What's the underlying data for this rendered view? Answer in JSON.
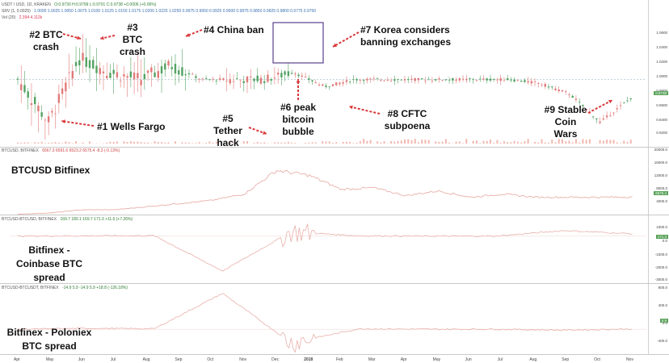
{
  "header": {
    "symbol": "USDT / USD, 1D, KRAKEN",
    "ohlc": "O:0.9730  H:0.9799  L:0.9701  C:0.9738  +0.0006 (+0.06%)",
    "indicator_label": "SRV (1, 0.0025)",
    "indicator_values": "1.0000  1.0025  1.0050  1.0075  1.0100  1.0125  1.0150  1.0175  1.0200  1.0225  1.0250  0.9975  0.9950  0.9925  0.9900  0.9875  0.9850  0.9825  0.9800  0.9775  0.9750",
    "vol_label": "Vol (20)",
    "vol_values": "2.394  4.112k"
  },
  "panes": {
    "btcusd_header": "BTCUSD, BITFINEX",
    "btcusd_values": "6567.3  6591.6  6523.2  6575.4  -8.3 (-0.13%)",
    "btcusd_name": "BTCUSD Bitfinex",
    "cb_header": "BTCUSD-BTCUSD, BITFINEX",
    "cb_values": "169.7  180.1  169.7  171.3  +11.6 (+7.26%)",
    "cb_name": "Bitfinex - Coinbase BTC spread",
    "pol_header": "BTCUSD-BTCUSDT, BITFINEX",
    "pol_values": "-14.9  5.9  -14.9  5.9  +18.8 (-126.18%)",
    "pol_name": "Bitfinex - Poloniex BTC spread"
  },
  "annotations": [
    {
      "id": "wells-fargo",
      "text": "#1 Wells Fargo"
    },
    {
      "id": "btc-crash-2",
      "text": "#2 BTC crash"
    },
    {
      "id": "btc-crash-3",
      "text": "#3 BTC crash"
    },
    {
      "id": "china-ban",
      "text": "#4 China ban"
    },
    {
      "id": "tether-hack",
      "text": "#5 Tether hack"
    },
    {
      "id": "peak-bubble",
      "text": "#6 peak bitcoin bubble"
    },
    {
      "id": "korea",
      "text": "#7 Korea considers banning exchanges"
    },
    {
      "id": "cftc",
      "text": "#8 CFTC subpoena"
    },
    {
      "id": "stable-coin",
      "text": "#9 Stable Coin Wars"
    }
  ],
  "axes": {
    "main_ticks": [
      "1.0600",
      "1.0400",
      "1.0200",
      "1.0000",
      "0.9800",
      "0.9600",
      "0.9400",
      "0.9200"
    ],
    "main_badge": "0.9738",
    "btc_ticks": [
      "20000.0",
      "16000.0",
      "12000.0",
      "8000.0",
      "4000.0"
    ],
    "btc_badge": "6575.4",
    "cb_ticks": [
      "1000.0",
      "0.0",
      "-1000.0",
      "-2000.0",
      "-3000.0"
    ],
    "cb_badge": "171.3",
    "pol_ticks": [
      "800.0",
      "400.0",
      "0.0",
      "-400.0"
    ],
    "pol_badge": "5.9",
    "x_labels": [
      "Apr",
      "May",
      "Jun",
      "Jul",
      "Aug",
      "Sep",
      "Oct",
      "Nov",
      "Dec",
      "2018",
      "Feb",
      "Mar",
      "Apr",
      "May",
      "Jun",
      "Jul",
      "Aug",
      "Sep",
      "Oct",
      "Nov"
    ]
  },
  "colors": {
    "up": "#53a262",
    "down": "#e17a7a",
    "line": "#e8b0aa",
    "arrow": "#d9383a",
    "box": "#5b3f8c",
    "volume": "#f2b8b0"
  },
  "chart_data": [
    {
      "type": "line",
      "title": "USDT / USD, 1D, KRAKEN",
      "x": [
        "Apr 2017",
        "May 2017",
        "Jun 2017",
        "Jul 2017",
        "Aug 2017",
        "Sep 2017",
        "Oct 2017",
        "Nov 2017",
        "Dec 2017",
        "Jan 2018",
        "Feb 2018",
        "Mar 2018",
        "Apr 2018",
        "May 2018",
        "Jun 2018",
        "Jul 2018",
        "Aug 2018",
        "Sep 2018",
        "Oct 2018",
        "Oct 15 2018",
        "Oct 25 2018"
      ],
      "series": [
        {
          "values": [
            1.0,
            0.94,
            1.03,
            1.01,
            1.0,
            1.02,
            1.0,
            1.0,
            1.0,
            1.01,
            0.99,
            1.0,
            1.0,
            1.0,
            1.0,
            1.0,
            1.0,
            0.995,
            0.98,
            0.94,
            0.974
          ]
        }
      ],
      "ylim": [
        0.91,
        1.08
      ]
    },
    {
      "type": "line",
      "title": "BTCUSD, BITFINEX",
      "x": [
        "Apr 2017",
        "May 2017",
        "Jun 2017",
        "Jul 2017",
        "Aug 2017",
        "Sep 2017",
        "Oct 2017",
        "Nov 2017",
        "Dec 2017",
        "Jan 2018",
        "Feb 2018",
        "Mar 2018",
        "Apr 2018",
        "May 2018",
        "Jun 2018",
        "Jul 2018",
        "Aug 2018",
        "Sep 2018",
        "Oct 2018",
        "Nov 2018"
      ],
      "series": [
        {
          "values": [
            1100,
            1500,
            2500,
            2500,
            3500,
            4500,
            5500,
            7500,
            15000,
            13500,
            9000,
            9500,
            7000,
            8500,
            6500,
            7500,
            6500,
            6500,
            6500,
            6575
          ]
        }
      ],
      "ylim": [
        2000,
        21000
      ]
    },
    {
      "type": "line",
      "title": "BTCUSD-BTCUSD, BITFINEX",
      "x": [
        "Apr 2017",
        "Jul 2017",
        "Oct 2017",
        "Dec 2017",
        "Jan 2018",
        "Mar 2018",
        "Jun 2018",
        "Sep 2018",
        "Oct 2018",
        "Nov 2018"
      ],
      "series": [
        {
          "values": [
            0,
            20,
            30,
            -2500,
            300,
            20,
            0,
            0,
            400,
            171
          ]
        }
      ],
      "ylim": [
        -3200,
        1200
      ]
    },
    {
      "type": "line",
      "title": "BTCUSD-BTCUSDT, BITFINEX",
      "x": [
        "Apr 2017",
        "Jul 2017",
        "Oct 2017",
        "Dec 2017",
        "Jan 2018",
        "Mar 2018",
        "Jun 2018",
        "Sep 2018",
        "Oct 2018",
        "Nov 2018"
      ],
      "series": [
        {
          "values": [
            0,
            20,
            10,
            800,
            -300,
            10,
            0,
            0,
            -20,
            5.9
          ]
        }
      ],
      "ylim": [
        -500,
        900
      ]
    }
  ]
}
